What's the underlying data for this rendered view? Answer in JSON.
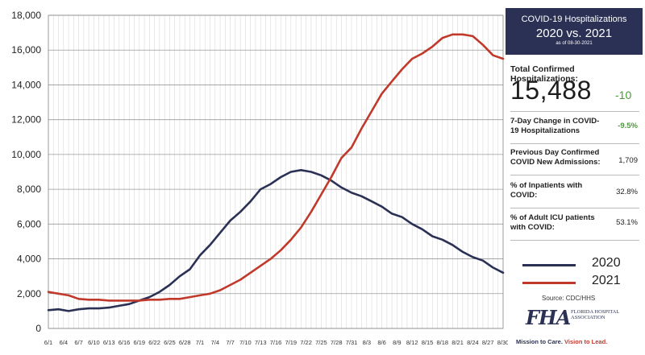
{
  "panel": {
    "title": "COVID-19 Hospitalizations",
    "subtitle": "2020 vs. 2021",
    "as_of": "as of 08-30-2021",
    "total_label": "Total Confirmed Hospitalizations:",
    "total_value": "15,488",
    "total_change": "-10",
    "stats": [
      {
        "label": "7-Day Change in COVID-19 Hospitalizations",
        "value": "-9.5%"
      },
      {
        "label": "Previous Day Confirmed COVID New Admissions:",
        "value": "1,709"
      },
      {
        "label": "% of Inpatients with COVID:",
        "value": "32.8%"
      },
      {
        "label": "% of Adult ICU patients with COVID:",
        "value": "53.1%"
      }
    ],
    "source": "Source: CDC/HHS",
    "logo_mark": "FHA",
    "logo_name": "FLORIDA HOSPITAL ASSOCIATION",
    "tagline_a": "Mission to Care.",
    "tagline_b": "Vision to Lead."
  },
  "colors": {
    "series_2020": "#2b3155",
    "series_2021": "#c0392b",
    "panel_header": "#2b3155",
    "positive_change": "#4a9a3a"
  },
  "chart_data": {
    "type": "line",
    "title": "",
    "xlabel": "",
    "ylabel": "",
    "ylim": [
      0,
      18000
    ],
    "y_ticks": [
      "0",
      "2,000",
      "4,000",
      "6,000",
      "8,000",
      "10,000",
      "12,000",
      "14,000",
      "16,000",
      "18,000"
    ],
    "x_tick_labels": [
      "6/1",
      "6/4",
      "6/7",
      "6/10",
      "6/13",
      "6/16",
      "6/19",
      "6/22",
      "6/25",
      "6/28",
      "7/1",
      "7/4",
      "7/7",
      "7/10",
      "7/13",
      "7/16",
      "7/19",
      "7/22",
      "7/25",
      "7/28",
      "7/31",
      "8/3",
      "8/6",
      "8/9",
      "8/12",
      "8/15",
      "8/18",
      "8/21",
      "8/24",
      "8/27",
      "8/30"
    ],
    "grid": true,
    "legend_position": "bottom-right",
    "series": [
      {
        "name": "2020",
        "x": [
          "6/1",
          "6/3",
          "6/5",
          "6/7",
          "6/9",
          "6/11",
          "6/13",
          "6/15",
          "6/17",
          "6/19",
          "6/21",
          "6/23",
          "6/25",
          "6/27",
          "6/29",
          "7/1",
          "7/3",
          "7/5",
          "7/7",
          "7/9",
          "7/11",
          "7/13",
          "7/15",
          "7/17",
          "7/19",
          "7/21",
          "7/23",
          "7/25",
          "7/27",
          "7/29",
          "7/31",
          "8/2",
          "8/4",
          "8/6",
          "8/8",
          "8/10",
          "8/12",
          "8/14",
          "8/16",
          "8/18",
          "8/20",
          "8/22",
          "8/24",
          "8/26",
          "8/28",
          "8/30"
        ],
        "values": [
          1050,
          1100,
          1000,
          1100,
          1150,
          1150,
          1200,
          1300,
          1400,
          1600,
          1800,
          2100,
          2500,
          3000,
          3400,
          4200,
          4800,
          5500,
          6200,
          6700,
          7300,
          8000,
          8300,
          8700,
          9000,
          9100,
          9000,
          8800,
          8500,
          8100,
          7800,
          7600,
          7300,
          7000,
          6600,
          6400,
          6000,
          5700,
          5300,
          5100,
          4800,
          4400,
          4100,
          3900,
          3500,
          3200
        ]
      },
      {
        "name": "2021",
        "x": [
          "6/1",
          "6/3",
          "6/5",
          "6/7",
          "6/9",
          "6/11",
          "6/13",
          "6/15",
          "6/17",
          "6/19",
          "6/21",
          "6/23",
          "6/25",
          "6/27",
          "6/29",
          "7/1",
          "7/3",
          "7/5",
          "7/7",
          "7/9",
          "7/11",
          "7/13",
          "7/15",
          "7/17",
          "7/19",
          "7/21",
          "7/23",
          "7/25",
          "7/27",
          "7/29",
          "7/31",
          "8/2",
          "8/4",
          "8/6",
          "8/8",
          "8/10",
          "8/12",
          "8/14",
          "8/16",
          "8/18",
          "8/20",
          "8/22",
          "8/24",
          "8/26",
          "8/28",
          "8/30"
        ],
        "values": [
          2100,
          2000,
          1900,
          1700,
          1650,
          1650,
          1600,
          1600,
          1600,
          1600,
          1650,
          1650,
          1700,
          1700,
          1800,
          1900,
          2000,
          2200,
          2500,
          2800,
          3200,
          3600,
          4000,
          4500,
          5100,
          5800,
          6700,
          7700,
          8700,
          9800,
          10400,
          11500,
          12500,
          13500,
          14200,
          14900,
          15500,
          15800,
          16200,
          16700,
          16900,
          16900,
          16800,
          16300,
          15700,
          15500
        ]
      }
    ]
  }
}
